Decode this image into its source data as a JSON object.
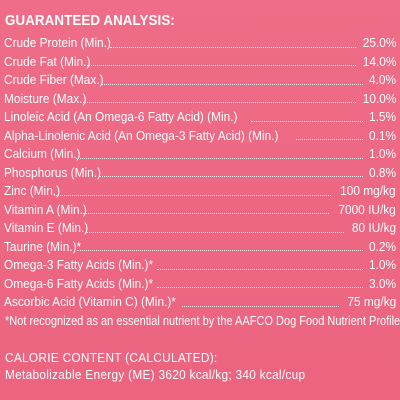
{
  "guaranteed_analysis": {
    "heading": "GUARANTEED ANALYSIS:",
    "rows": [
      {
        "label": "Crude Protein (Min.)",
        "value": "25.0%"
      },
      {
        "label": "Crude Fat (Min.)",
        "value": "14.0%"
      },
      {
        "label": "Crude Fiber (Max.)",
        "value": "4.0%"
      },
      {
        "label": "Moisture (Max.)",
        "value": "10.0%"
      },
      {
        "label": "Linoleic Acid (An Omega-6 Fatty Acid) (Min.)",
        "value": "1.5%"
      },
      {
        "label": "Alpha-Linolenic Acid (An Omega-3 Fatty Acid) (Min.)",
        "value": "0.1%"
      },
      {
        "label": "Calcium (Min.)",
        "value": "1.0%"
      },
      {
        "label": "Phosphorus (Min.)",
        "value": "0.8%"
      },
      {
        "label": "Zinc (Min.)",
        "value": "100 mg/kg"
      },
      {
        "label": "Vitamin A (Min.)",
        "value": "7000 IU/kg"
      },
      {
        "label": "Vitamin E (Min.)",
        "value": "80 IU/kg"
      },
      {
        "label": "Taurine (Min.)*",
        "value": "0.2%"
      },
      {
        "label": "Omega-3 Fatty Acids (Min.)*",
        "value": "1.0%"
      },
      {
        "label": "Omega-6 Fatty Acids (Min.)*",
        "value": "3.0%"
      },
      {
        "label": "Ascorbic Acid (Vitamin C) (Min.)*",
        "value": "75 mg/kg"
      }
    ],
    "footnote": "*Not recognized as an essential nutrient by the AAFCO Dog Food Nutrient Profiles."
  },
  "calorie_content": {
    "heading": "CALORIE CONTENT (CALCULATED):",
    "text": "Metabolizable Energy (ME) 3620 kcal/kg; 340 kcal/cup"
  },
  "colors": {
    "background": "#ee6a86",
    "text": "#ffffff"
  }
}
